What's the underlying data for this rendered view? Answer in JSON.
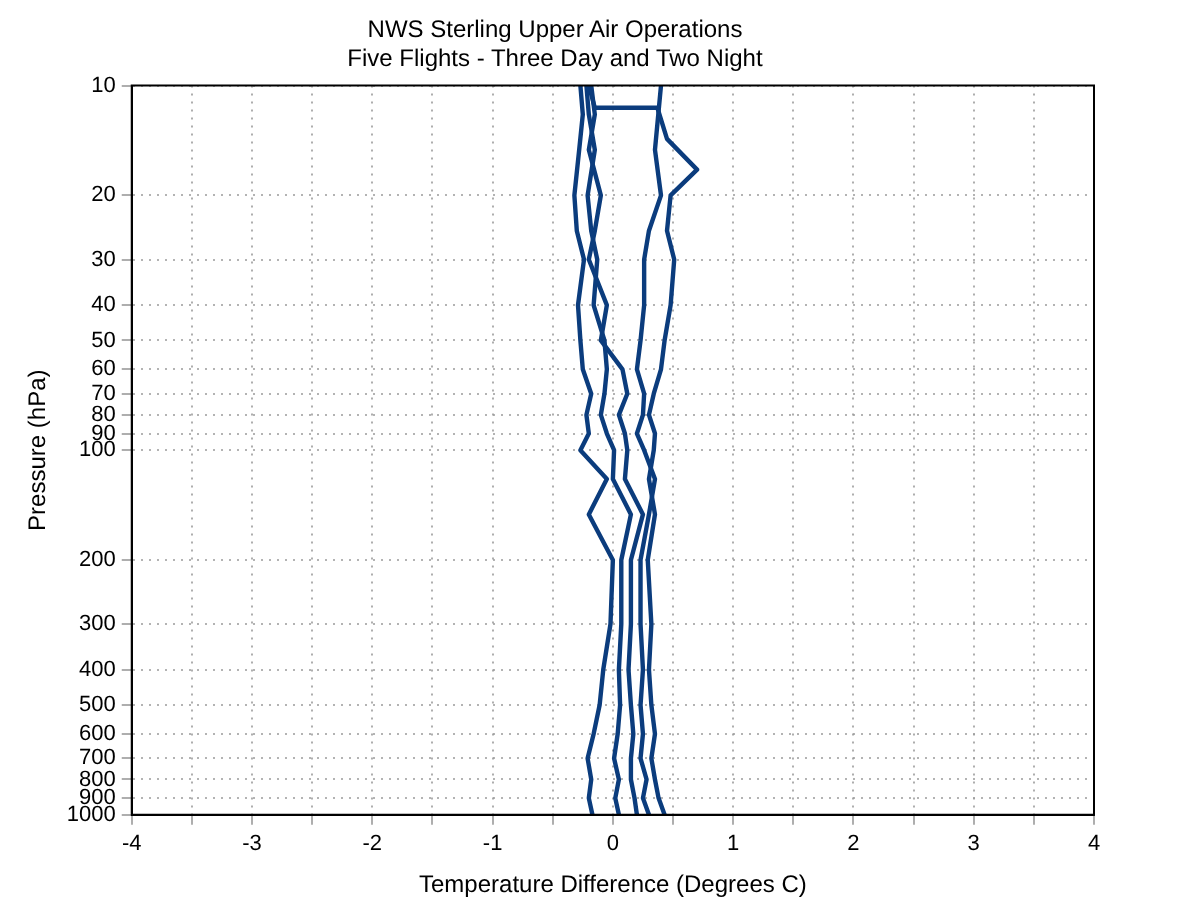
{
  "chart_data": {
    "type": "line",
    "title": [
      "NWS Sterling Upper Air Operations",
      "Five Flights - Three Day and Two Night"
    ],
    "xlabel": "Temperature Difference (Degrees C)",
    "ylabel": "Pressure (hPa)",
    "log": "y",
    "xlim": [
      -4,
      4
    ],
    "ylim": [
      1000,
      10
    ],
    "xticks": [
      -4,
      {
        "value": -3.5,
        "label": null
      },
      -3,
      {
        "value": -2.5,
        "label": null
      },
      -2,
      {
        "value": -1.5,
        "label": null
      },
      -1,
      {
        "value": -0.5,
        "label": null
      },
      0,
      {
        "value": 0.5,
        "label": null
      },
      1,
      {
        "value": 1.5,
        "label": null
      },
      2,
      {
        "value": 2.5,
        "label": null
      },
      3,
      {
        "value": 3.5,
        "label": null
      },
      4
    ],
    "yticks": [
      10,
      20,
      30,
      40,
      50,
      60,
      70,
      80,
      90,
      100,
      200,
      300,
      400,
      500,
      600,
      700,
      800,
      900,
      1000
    ],
    "grid": true,
    "legend": false,
    "marker": "none",
    "line_style": "solid",
    "series": [
      {
        "color": "#0b3c7d",
        "x": [
          -0.17,
          -0.2,
          -0.18,
          -0.21,
          -0.16,
          -0.11,
          -0.08,
          -0.02,
          0,
          -0.2,
          -0.05,
          -0.27,
          -0.2,
          -0.22,
          -0.18,
          -0.25,
          -0.27,
          -0.29,
          -0.24,
          -0.3,
          -0.32,
          -0.28,
          -0.25,
          -0.27
        ],
        "values": [
          1000,
          900,
          800,
          700,
          600,
          500,
          400,
          300,
          200,
          150,
          120,
          100,
          90,
          80,
          70,
          60,
          50,
          40,
          30,
          25,
          20,
          15,
          12,
          10
        ]
      },
      {
        "color": "#0b3c7d",
        "x": [
          0.05,
          0.02,
          0.05,
          0.01,
          0.04,
          0.06,
          0.05,
          0.07,
          0.07,
          0.15,
          0,
          0.01,
          -0.05,
          -0.1,
          -0.07,
          -0.05,
          -0.07,
          -0.16,
          -0.13,
          -0.18,
          -0.21,
          -0.15,
          -0.2,
          -0.22
        ],
        "values": [
          1000,
          900,
          800,
          700,
          600,
          500,
          400,
          300,
          200,
          150,
          120,
          100,
          90,
          80,
          70,
          60,
          50,
          40,
          30,
          25,
          20,
          15,
          12,
          10
        ]
      },
      {
        "color": "#0b3c7d",
        "x": [
          0.2,
          0.18,
          0.15,
          0.15,
          0.17,
          0.15,
          0.13,
          0.15,
          0.15,
          0.25,
          0.1,
          0.12,
          0.1,
          0.05,
          0.12,
          0.08,
          -0.1,
          -0.05,
          -0.2,
          -0.15,
          -0.1,
          -0.2,
          -0.15,
          -0.18
        ],
        "values": [
          1000,
          900,
          800,
          700,
          600,
          500,
          400,
          300,
          200,
          150,
          120,
          100,
          90,
          80,
          70,
          60,
          50,
          40,
          30,
          25,
          20,
          15,
          12,
          10
        ]
      },
      {
        "color": "#0b3c7d",
        "x": [
          0.3,
          0.25,
          0.28,
          0.23,
          0.25,
          0.23,
          0.25,
          0.23,
          0.23,
          0.3,
          0.35,
          0.26,
          0.2,
          0.25,
          0.26,
          0.2,
          0.23,
          0.26,
          0.26,
          0.3,
          0.4,
          0.35,
          0.4
        ],
        "values": [
          1000,
          900,
          800,
          700,
          600,
          500,
          400,
          300,
          200,
          150,
          120,
          100,
          90,
          80,
          70,
          60,
          50,
          40,
          30,
          25,
          20,
          15,
          10
        ]
      },
      {
        "color": "#0b3c7d",
        "x": [
          0.43,
          0.38,
          0.35,
          0.32,
          0.35,
          0.32,
          0.3,
          0.32,
          0.29,
          0.35,
          0.3,
          0.34,
          0.35,
          0.3,
          0.34,
          0.4,
          0.43,
          0.48,
          0.51,
          0.45,
          0.48,
          0.7,
          0.45,
          0.37,
          -0.15,
          -0.2
        ],
        "values": [
          1000,
          900,
          800,
          700,
          600,
          500,
          400,
          300,
          200,
          150,
          120,
          100,
          90,
          80,
          70,
          60,
          50,
          40,
          30,
          25,
          20,
          17,
          14,
          11.5,
          11.5,
          10
        ]
      }
    ]
  }
}
